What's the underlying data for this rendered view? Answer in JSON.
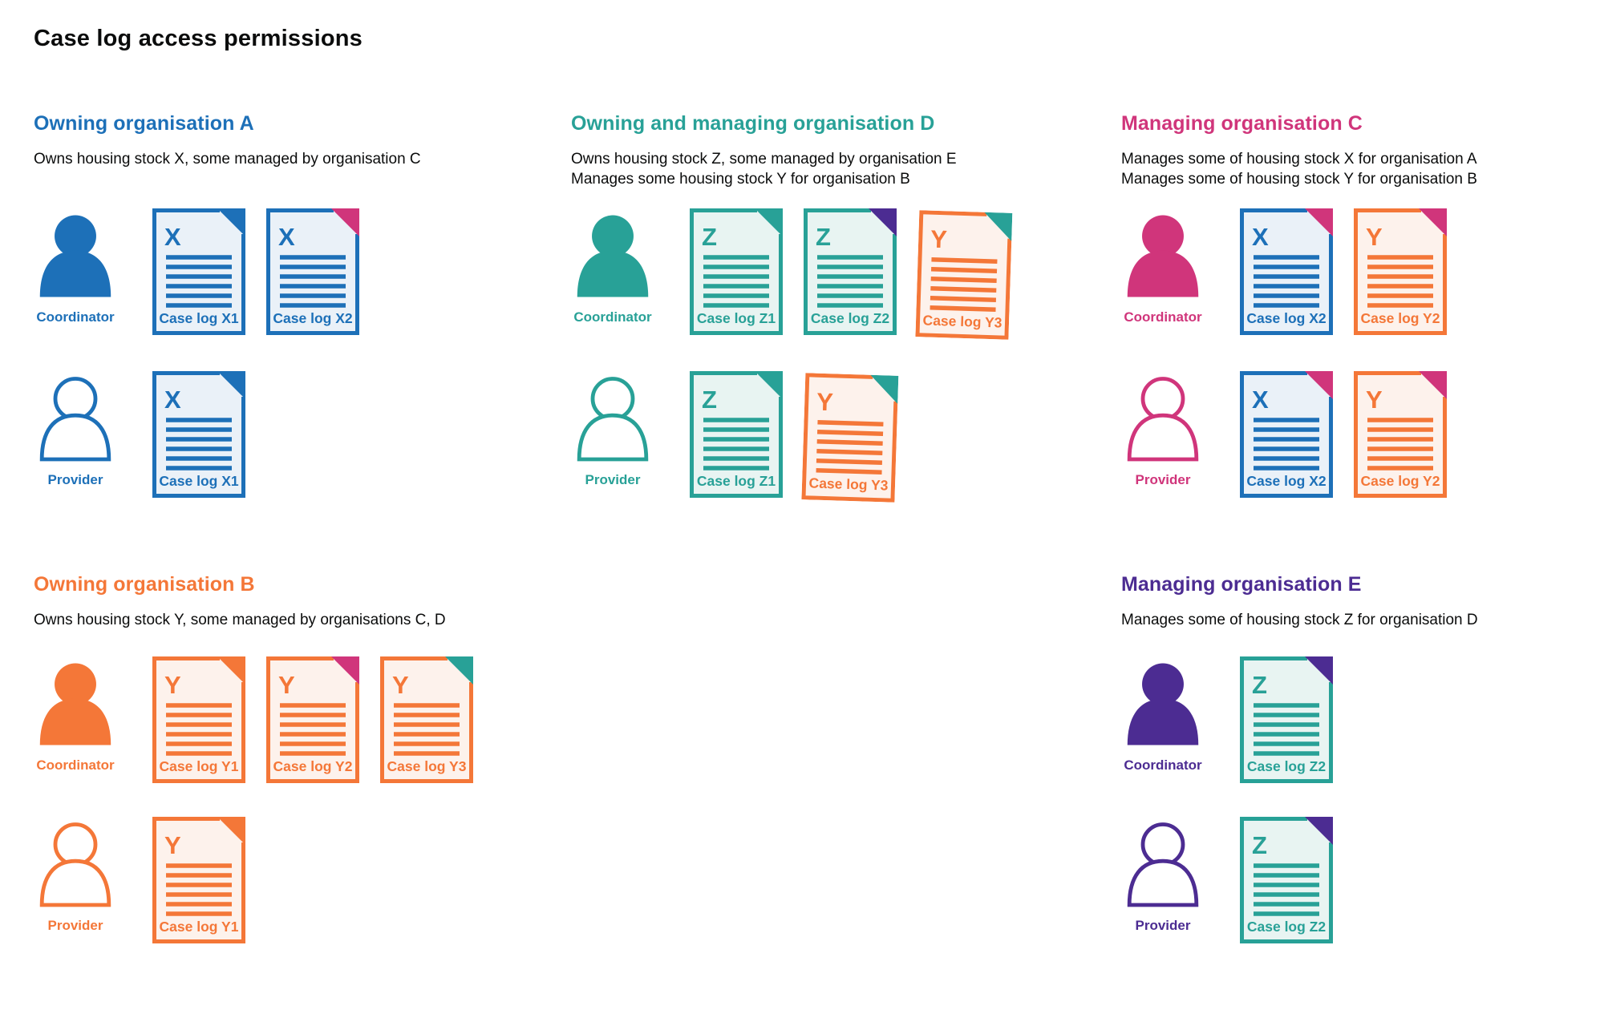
{
  "title": "Case log access permissions",
  "colors": {
    "blue": "#1d70b8",
    "teal": "#28a197",
    "pink": "#d0357b",
    "orange": "#f47738",
    "purple": "#4c2c92",
    "ink": "#0b0c0c",
    "tint_blue": "#eaf1f8",
    "tint_teal": "#e8f4f2",
    "tint_orange": "#fdf2ec"
  },
  "sections": [
    {
      "id": "owning-organisation-a",
      "title": "Owning organisation A",
      "color": "blue",
      "description": [
        "Owns housing stock X, some managed by organisation C"
      ],
      "rows": [
        {
          "role": "Coordinator",
          "person_style": "filled",
          "docs": [
            {
              "letter": "X",
              "label": "Case log X1",
              "doc_color": "blue",
              "fold_color": "blue"
            },
            {
              "letter": "X",
              "label": "Case log X2",
              "doc_color": "blue",
              "fold_color": "pink"
            }
          ]
        },
        {
          "role": "Provider",
          "person_style": "outline",
          "docs": [
            {
              "letter": "X",
              "label": "Case log X1",
              "doc_color": "blue",
              "fold_color": "blue"
            }
          ]
        }
      ]
    },
    {
      "id": "owning-and-managing-organisation-d",
      "title": "Owning and managing organisation D",
      "color": "teal",
      "description": [
        "Owns housing stock Z, some managed by organisation E",
        "Manages some housing stock Y for organisation B"
      ],
      "rows": [
        {
          "role": "Coordinator",
          "person_style": "filled",
          "docs": [
            {
              "letter": "Z",
              "label": "Case log Z1",
              "doc_color": "teal",
              "fold_color": "teal"
            },
            {
              "letter": "Z",
              "label": "Case log Z2",
              "doc_color": "teal",
              "fold_color": "purple"
            },
            {
              "letter": "Y",
              "label": "Case log Y3",
              "doc_color": "orange",
              "fold_color": "teal",
              "tilt": true
            }
          ]
        },
        {
          "role": "Provider",
          "person_style": "outline",
          "docs": [
            {
              "letter": "Z",
              "label": "Case log Z1",
              "doc_color": "teal",
              "fold_color": "teal"
            },
            {
              "letter": "Y",
              "label": "Case log Y3",
              "doc_color": "orange",
              "fold_color": "teal",
              "tilt": true
            }
          ]
        }
      ]
    },
    {
      "id": "managing-organisation-c",
      "title": "Managing organisation C",
      "color": "pink",
      "description": [
        "Manages some of housing stock X for organisation A",
        "Manages some of housing stock Y for organisation B"
      ],
      "rows": [
        {
          "role": "Coordinator",
          "person_style": "filled",
          "docs": [
            {
              "letter": "X",
              "label": "Case log X2",
              "doc_color": "blue",
              "fold_color": "pink"
            },
            {
              "letter": "Y",
              "label": "Case log Y2",
              "doc_color": "orange",
              "fold_color": "pink"
            }
          ]
        },
        {
          "role": "Provider",
          "person_style": "outline",
          "docs": [
            {
              "letter": "X",
              "label": "Case log X2",
              "doc_color": "blue",
              "fold_color": "pink"
            },
            {
              "letter": "Y",
              "label": "Case log Y2",
              "doc_color": "orange",
              "fold_color": "pink"
            }
          ]
        }
      ]
    },
    {
      "id": "owning-organisation-b",
      "title": "Owning organisation B",
      "color": "orange",
      "description": [
        "Owns housing stock Y, some managed by organisations C, D"
      ],
      "rows": [
        {
          "role": "Coordinator",
          "person_style": "filled",
          "docs": [
            {
              "letter": "Y",
              "label": "Case log Y1",
              "doc_color": "orange",
              "fold_color": "orange"
            },
            {
              "letter": "Y",
              "label": "Case log Y2",
              "doc_color": "orange",
              "fold_color": "pink"
            },
            {
              "letter": "Y",
              "label": "Case log Y3",
              "doc_color": "orange",
              "fold_color": "teal"
            }
          ]
        },
        {
          "role": "Provider",
          "person_style": "outline",
          "docs": [
            {
              "letter": "Y",
              "label": "Case log Y1",
              "doc_color": "orange",
              "fold_color": "orange"
            }
          ]
        }
      ]
    },
    {
      "id": "managing-organisation-e",
      "title": "Managing organisation E",
      "color": "purple",
      "description": [
        "Manages some of housing stock Z for organisation D"
      ],
      "rows": [
        {
          "role": "Coordinator",
          "person_style": "filled",
          "docs": [
            {
              "letter": "Z",
              "label": "Case log Z2",
              "doc_color": "teal",
              "fold_color": "purple"
            }
          ]
        },
        {
          "role": "Provider",
          "person_style": "outline",
          "docs": [
            {
              "letter": "Z",
              "label": "Case log Z2",
              "doc_color": "teal",
              "fold_color": "purple"
            }
          ]
        }
      ]
    }
  ]
}
